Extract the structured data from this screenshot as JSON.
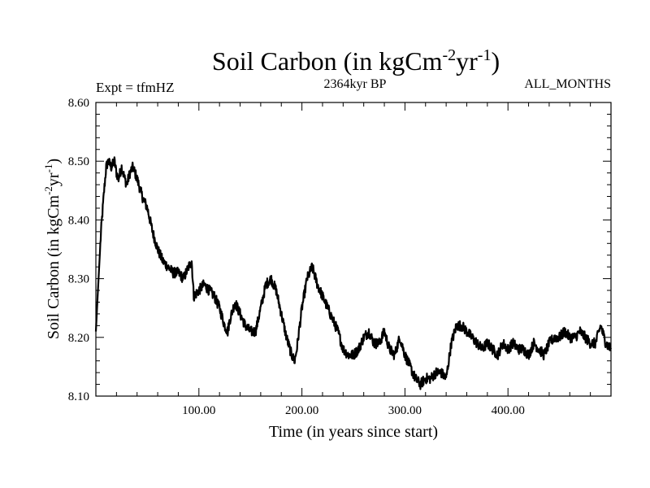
{
  "chart_data": {
    "type": "line",
    "title": {
      "text": "Soil Carbon (in kgCm",
      "sup1": "-2",
      "mid": "yr",
      "sup2": "-1",
      "end": ")"
    },
    "subtitle": "2364kyr BP",
    "left_label": "Expt = tfmHZ",
    "right_label": "ALL_MONTHS",
    "xlabel": "Time (in years since start)",
    "ylabel": {
      "text": "Soil Carbon (in kgCm",
      "sup1": "-2",
      "mid": "yr",
      "sup2": "-1",
      "end": ")"
    },
    "xlim": [
      0,
      500
    ],
    "ylim": [
      8.1,
      8.6
    ],
    "x_ticks": [
      100,
      200,
      300,
      400
    ],
    "x_tick_labels": [
      "100.00",
      "200.00",
      "300.00",
      "400.00"
    ],
    "y_ticks": [
      8.1,
      8.2,
      8.3,
      8.4,
      8.5,
      8.6
    ],
    "y_tick_labels": [
      "8.10",
      "8.20",
      "8.30",
      "8.40",
      "8.50",
      "8.60"
    ],
    "grid": false,
    "line_color": "#000000",
    "series": [
      {
        "name": "Soil Carbon",
        "x": [
          0,
          2,
          5,
          8,
          10,
          12,
          15,
          18,
          20,
          22,
          25,
          28,
          30,
          33,
          36,
          40,
          45,
          50,
          55,
          60,
          65,
          70,
          75,
          80,
          85,
          90,
          93,
          95,
          100,
          105,
          110,
          115,
          120,
          125,
          128,
          130,
          135,
          140,
          145,
          150,
          155,
          160,
          165,
          170,
          175,
          180,
          185,
          190,
          193,
          195,
          200,
          205,
          210,
          215,
          220,
          225,
          230,
          235,
          240,
          245,
          250,
          255,
          260,
          265,
          270,
          275,
          280,
          285,
          290,
          295,
          300,
          305,
          310,
          315,
          320,
          325,
          330,
          335,
          340,
          345,
          350,
          355,
          360,
          365,
          370,
          375,
          380,
          385,
          390,
          395,
          400,
          405,
          410,
          415,
          420,
          425,
          430,
          435,
          440,
          445,
          450,
          455,
          460,
          465,
          470,
          475,
          480,
          485,
          490,
          495,
          500
        ],
        "values": [
          8.21,
          8.28,
          8.38,
          8.45,
          8.49,
          8.5,
          8.49,
          8.5,
          8.48,
          8.47,
          8.49,
          8.47,
          8.46,
          8.48,
          8.49,
          8.47,
          8.44,
          8.42,
          8.38,
          8.35,
          8.33,
          8.32,
          8.31,
          8.31,
          8.3,
          8.32,
          8.33,
          8.27,
          8.28,
          8.29,
          8.28,
          8.27,
          8.25,
          8.22,
          8.21,
          8.23,
          8.26,
          8.24,
          8.22,
          8.21,
          8.21,
          8.25,
          8.29,
          8.3,
          8.28,
          8.24,
          8.2,
          8.17,
          8.16,
          8.18,
          8.25,
          8.3,
          8.32,
          8.29,
          8.27,
          8.25,
          8.23,
          8.21,
          8.18,
          8.17,
          8.17,
          8.18,
          8.2,
          8.21,
          8.19,
          8.19,
          8.21,
          8.18,
          8.17,
          8.2,
          8.17,
          8.15,
          8.13,
          8.12,
          8.13,
          8.13,
          8.14,
          8.14,
          8.13,
          8.19,
          8.22,
          8.22,
          8.21,
          8.2,
          8.19,
          8.18,
          8.19,
          8.18,
          8.17,
          8.19,
          8.18,
          8.19,
          8.18,
          8.18,
          8.17,
          8.19,
          8.18,
          8.17,
          8.19,
          8.2,
          8.2,
          8.21,
          8.2,
          8.2,
          8.21,
          8.2,
          8.19,
          8.19,
          8.22,
          8.19,
          8.18
        ]
      }
    ]
  }
}
